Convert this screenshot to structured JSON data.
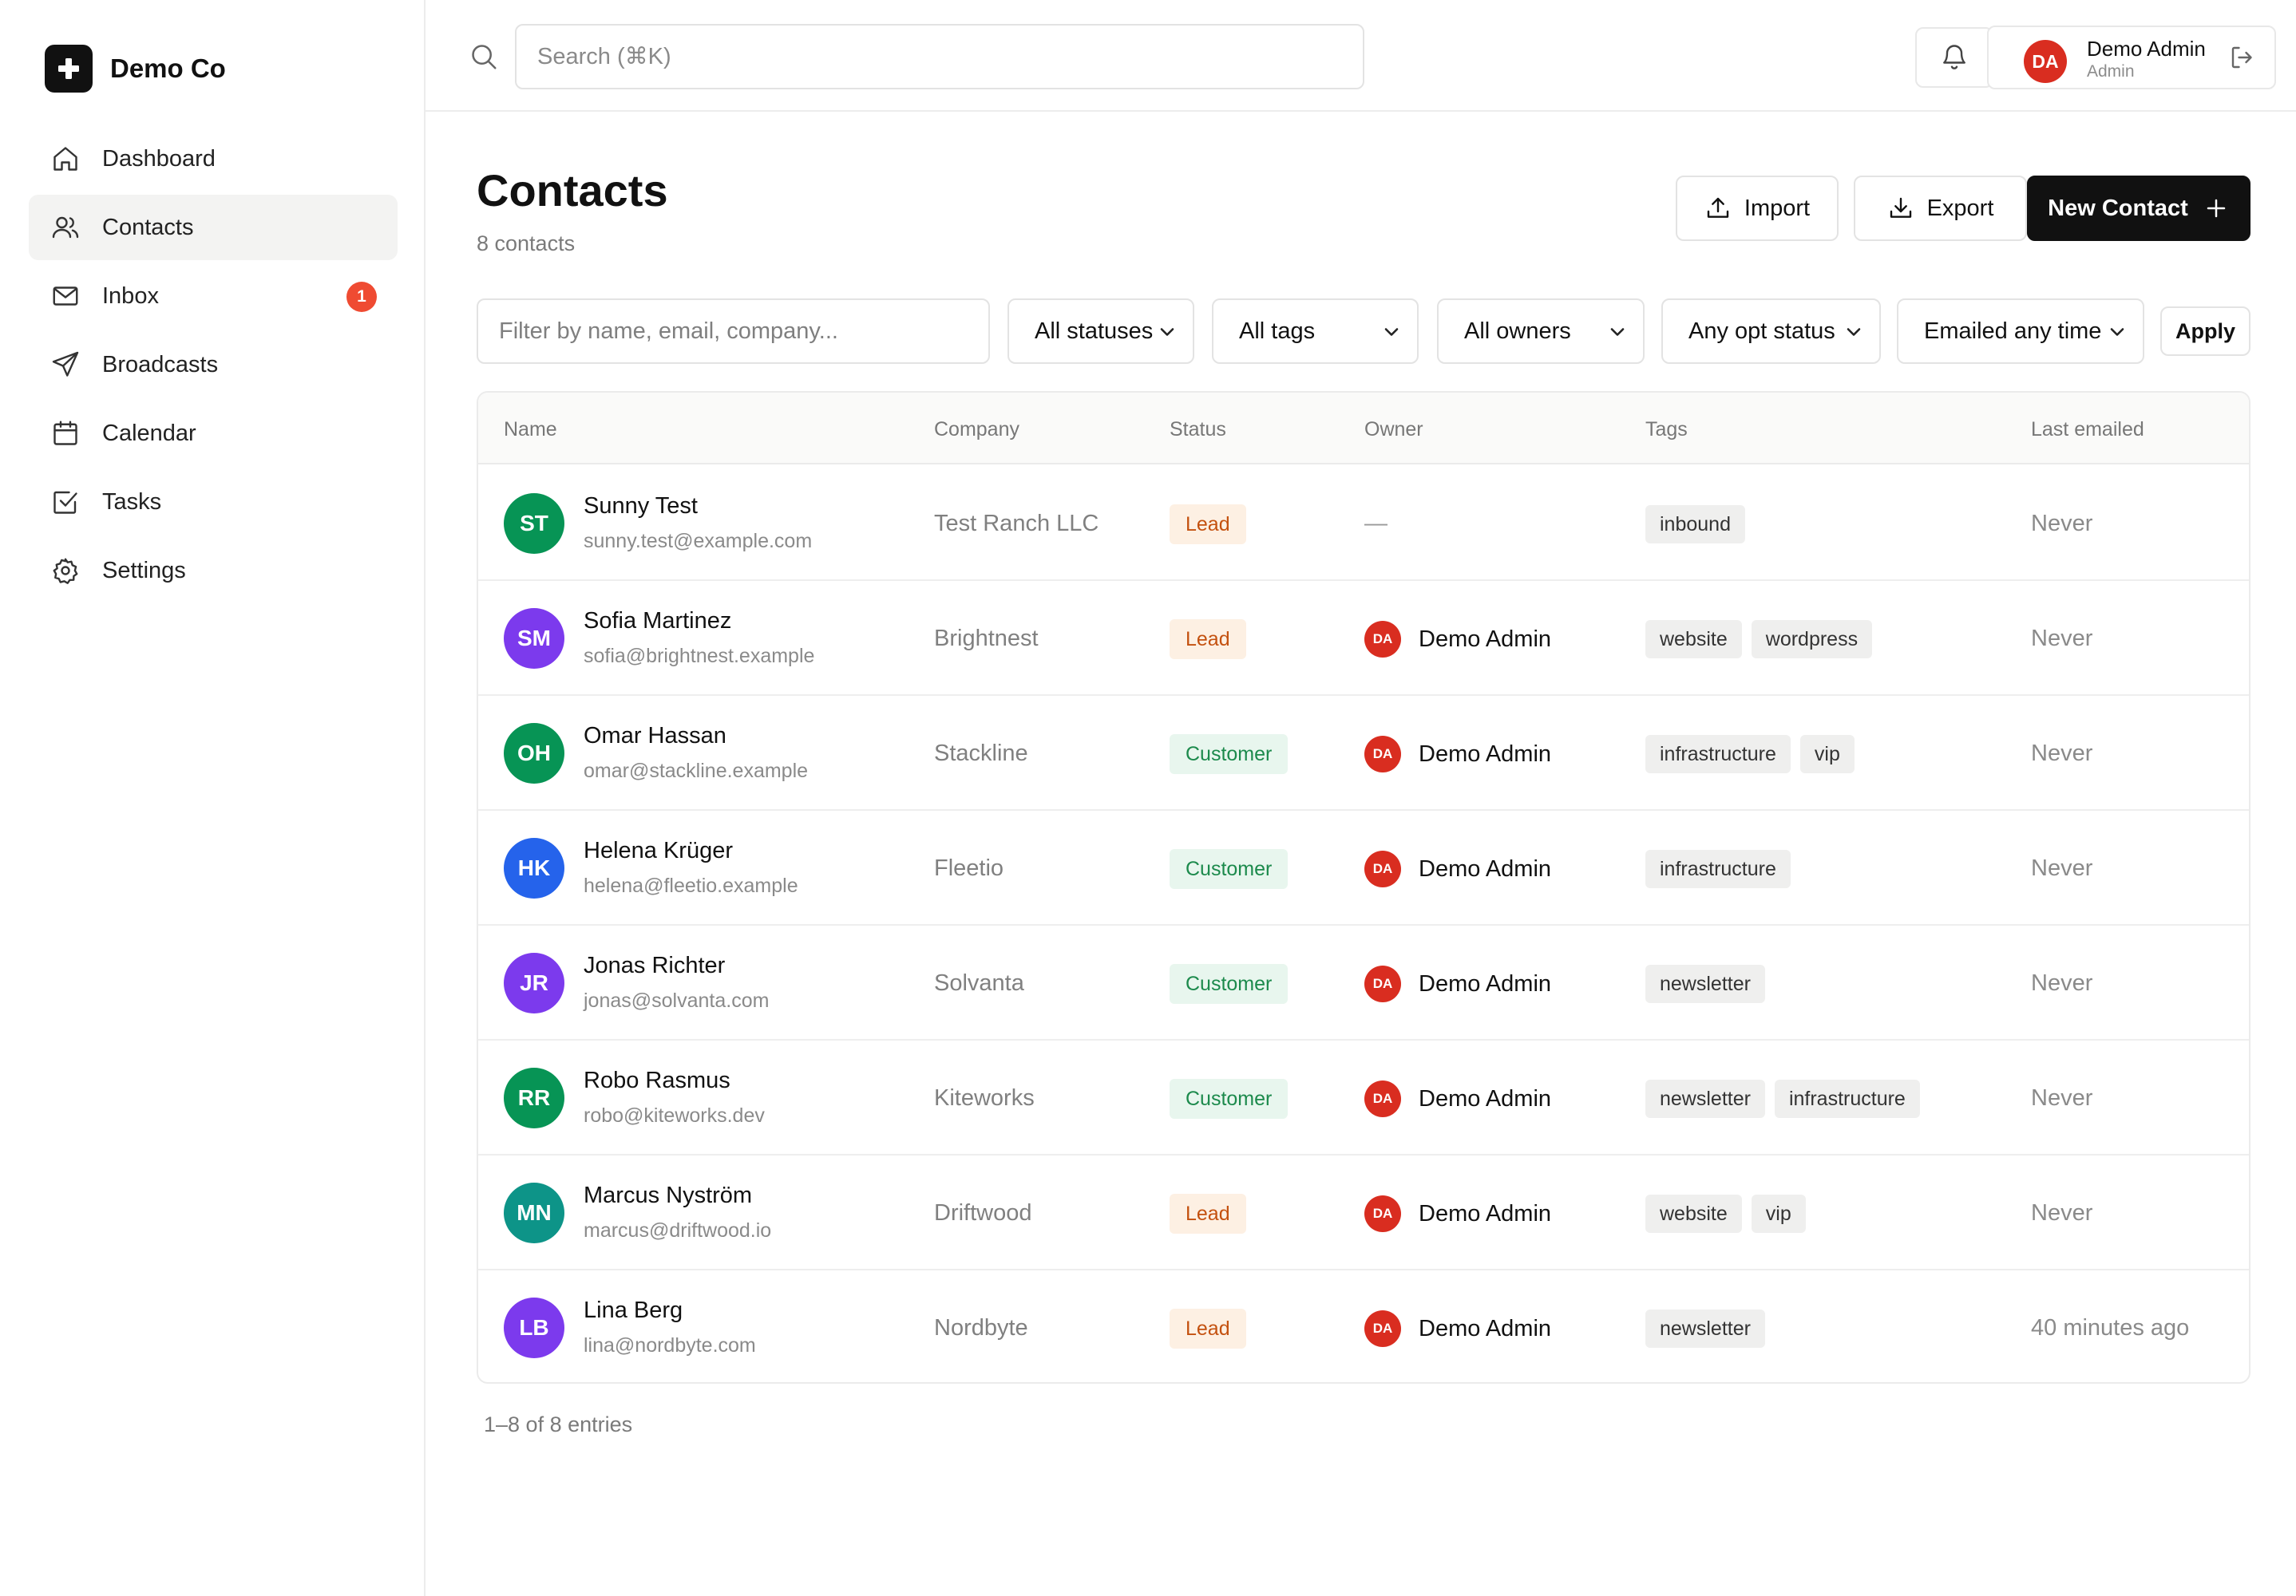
{
  "brand": {
    "name": "Demo Co"
  },
  "nav": {
    "items": [
      {
        "key": "dashboard",
        "label": "Dashboard",
        "icon": "home-icon"
      },
      {
        "key": "contacts",
        "label": "Contacts",
        "icon": "users-icon",
        "active": true
      },
      {
        "key": "inbox",
        "label": "Inbox",
        "icon": "mail-icon",
        "badge": "1"
      },
      {
        "key": "broadcasts",
        "label": "Broadcasts",
        "icon": "send-icon"
      },
      {
        "key": "calendar",
        "label": "Calendar",
        "icon": "calendar-icon"
      },
      {
        "key": "tasks",
        "label": "Tasks",
        "icon": "checkbox-icon"
      },
      {
        "key": "settings",
        "label": "Settings",
        "icon": "gear-icon"
      }
    ]
  },
  "topbar": {
    "search_placeholder": "Search (⌘K)",
    "user": {
      "initials": "DA",
      "name": "Demo Admin",
      "role": "Admin"
    }
  },
  "page": {
    "title": "Contacts",
    "subtitle": "8 contacts",
    "import_label": "Import",
    "export_label": "Export",
    "new_label": "New Contact"
  },
  "filters": {
    "search_placeholder": "Filter by name, email, company...",
    "status": "All statuses",
    "tags": "All tags",
    "owners": "All owners",
    "opt_status": "Any opt status",
    "emailed": "Emailed any time",
    "apply_label": "Apply"
  },
  "table": {
    "headers": {
      "name": "Name",
      "company": "Company",
      "status": "Status",
      "owner": "Owner",
      "tags": "Tags",
      "last_emailed": "Last emailed"
    },
    "rows": [
      {
        "initials": "ST",
        "color": "#079455",
        "name": "Sunny Test",
        "email": "sunny.test@example.com",
        "company": "Test Ranch LLC",
        "status": "Lead",
        "owner": "—",
        "owner_initials": "",
        "tags": [
          "inbound"
        ],
        "last": "Never"
      },
      {
        "initials": "SM",
        "color": "#7c3aed",
        "name": "Sofia Martinez",
        "email": "sofia@brightnest.example",
        "company": "Brightnest",
        "status": "Lead",
        "owner": "Demo Admin",
        "owner_initials": "DA",
        "tags": [
          "website",
          "wordpress"
        ],
        "last": "Never"
      },
      {
        "initials": "OH",
        "color": "#079455",
        "name": "Omar Hassan",
        "email": "omar@stackline.example",
        "company": "Stackline",
        "status": "Customer",
        "owner": "Demo Admin",
        "owner_initials": "DA",
        "tags": [
          "infrastructure",
          "vip"
        ],
        "last": "Never"
      },
      {
        "initials": "HK",
        "color": "#2563eb",
        "name": "Helena Krüger",
        "email": "helena@fleetio.example",
        "company": "Fleetio",
        "status": "Customer",
        "owner": "Demo Admin",
        "owner_initials": "DA",
        "tags": [
          "infrastructure"
        ],
        "last": "Never"
      },
      {
        "initials": "JR",
        "color": "#7c3aed",
        "name": "Jonas Richter",
        "email": "jonas@solvanta.com",
        "company": "Solvanta",
        "status": "Customer",
        "owner": "Demo Admin",
        "owner_initials": "DA",
        "tags": [
          "newsletter"
        ],
        "last": "Never"
      },
      {
        "initials": "RR",
        "color": "#079455",
        "name": "Robo Rasmus",
        "email": "robo@kiteworks.dev",
        "company": "Kiteworks",
        "status": "Customer",
        "owner": "Demo Admin",
        "owner_initials": "DA",
        "tags": [
          "newsletter",
          "infrastructure"
        ],
        "last": "Never"
      },
      {
        "initials": "MN",
        "color": "#0d9488",
        "name": "Marcus Nyström",
        "email": "marcus@driftwood.io",
        "company": "Driftwood",
        "status": "Lead",
        "owner": "Demo Admin",
        "owner_initials": "DA",
        "tags": [
          "website",
          "vip"
        ],
        "last": "Never"
      },
      {
        "initials": "LB",
        "color": "#7c3aed",
        "name": "Lina Berg",
        "email": "lina@nordbyte.com",
        "company": "Nordbyte",
        "status": "Lead",
        "owner": "Demo Admin",
        "owner_initials": "DA",
        "tags": [
          "newsletter"
        ],
        "last": "40 minutes ago"
      }
    ]
  },
  "pagination": {
    "text": "1–8 of 8 entries"
  }
}
